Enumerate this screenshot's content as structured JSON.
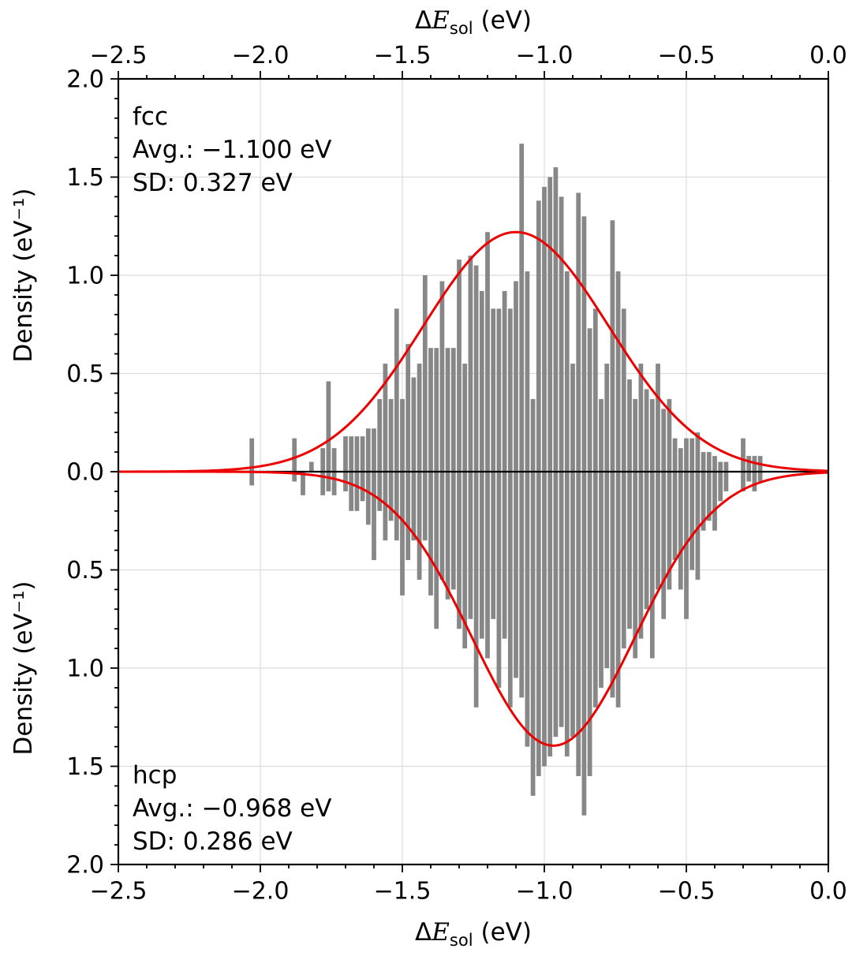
{
  "chart_data": {
    "type": "bar",
    "subtype": "mirrored_histogram_with_density_curves",
    "xlabel": {
      "delta": "Δ",
      "symbol": "E",
      "sub": "sol",
      "units": " (eV)"
    },
    "ylabel": "Density (eV⁻¹)",
    "xlim": [
      -2.5,
      0.0
    ],
    "ylim_half": 2.0,
    "bin_width": 0.02,
    "x_ticks": {
      "values": [
        -2.5,
        -2.0,
        -1.5,
        -1.0,
        -0.5,
        0.0
      ],
      "labels": [
        "−2.5",
        "−2.0",
        "−1.5",
        "−1.0",
        "−0.5",
        "0.0"
      ]
    },
    "y_ticks_top": {
      "values": [
        2.0,
        1.5,
        1.0,
        0.5,
        0.0
      ],
      "labels": [
        "2.0",
        "1.5",
        "1.0",
        "0.5",
        "0.0"
      ]
    },
    "y_ticks_bottom": {
      "values": [
        0.5,
        1.0,
        1.5,
        2.0
      ],
      "labels": [
        "0.5",
        "1.0",
        "1.5",
        "2.0"
      ]
    },
    "colors": {
      "bar": "#878787",
      "curve": "#ed0000",
      "grid": "#dcdcdc",
      "axis": "#000000",
      "zero_line": "#000000"
    },
    "annotations": {
      "fcc": {
        "lines": [
          "fcc",
          "Avg.: −1.100 eV",
          "SD: 0.327 eV"
        ]
      },
      "hcp": {
        "lines": [
          "hcp",
          "Avg.: −0.968 eV",
          "SD: 0.286 eV"
        ]
      }
    },
    "series": [
      {
        "name": "fcc",
        "side": "up",
        "avg": -1.1,
        "sd": 0.327,
        "bars": [
          [
            -2.03,
            0.17
          ],
          [
            -1.88,
            0.17
          ],
          [
            -1.82,
            0.05
          ],
          [
            -1.78,
            0.12
          ],
          [
            -1.76,
            0.46
          ],
          [
            -1.74,
            0.12
          ],
          [
            -1.7,
            0.18
          ],
          [
            -1.68,
            0.18
          ],
          [
            -1.66,
            0.18
          ],
          [
            -1.64,
            0.18
          ],
          [
            -1.62,
            0.22
          ],
          [
            -1.6,
            0.22
          ],
          [
            -1.58,
            0.37
          ],
          [
            -1.56,
            0.55
          ],
          [
            -1.54,
            0.37
          ],
          [
            -1.52,
            0.83
          ],
          [
            -1.5,
            0.37
          ],
          [
            -1.48,
            0.65
          ],
          [
            -1.46,
            0.48
          ],
          [
            -1.44,
            0.55
          ],
          [
            -1.42,
            1.0
          ],
          [
            -1.4,
            0.63
          ],
          [
            -1.38,
            0.63
          ],
          [
            -1.36,
            0.97
          ],
          [
            -1.34,
            0.63
          ],
          [
            -1.32,
            0.63
          ],
          [
            -1.3,
            1.08
          ],
          [
            -1.28,
            0.55
          ],
          [
            -1.26,
            1.1
          ],
          [
            -1.24,
            1.05
          ],
          [
            -1.22,
            0.92
          ],
          [
            -1.2,
            1.22
          ],
          [
            -1.18,
            0.83
          ],
          [
            -1.16,
            0.83
          ],
          [
            -1.14,
            0.92
          ],
          [
            -1.12,
            0.83
          ],
          [
            -1.1,
            0.97
          ],
          [
            -1.08,
            1.67
          ],
          [
            -1.06,
            1.02
          ],
          [
            -1.04,
            0.37
          ],
          [
            -1.02,
            1.38
          ],
          [
            -1.0,
            1.45
          ],
          [
            -0.98,
            1.5
          ],
          [
            -0.96,
            1.55
          ],
          [
            -0.94,
            1.4
          ],
          [
            -0.92,
            1.02
          ],
          [
            -0.9,
            0.55
          ],
          [
            -0.88,
            1.42
          ],
          [
            -0.86,
            1.3
          ],
          [
            -0.84,
            0.73
          ],
          [
            -0.82,
            0.83
          ],
          [
            -0.8,
            0.37
          ],
          [
            -0.78,
            0.55
          ],
          [
            -0.76,
            1.28
          ],
          [
            -0.74,
            1.02
          ],
          [
            -0.72,
            0.83
          ],
          [
            -0.7,
            0.47
          ],
          [
            -0.68,
            0.37
          ],
          [
            -0.66,
            0.55
          ],
          [
            -0.64,
            0.42
          ],
          [
            -0.62,
            0.37
          ],
          [
            -0.6,
            0.55
          ],
          [
            -0.58,
            0.32
          ],
          [
            -0.56,
            0.37
          ],
          [
            -0.54,
            0.17
          ],
          [
            -0.52,
            0.12
          ],
          [
            -0.5,
            0.17
          ],
          [
            -0.48,
            0.17
          ],
          [
            -0.46,
            0.2
          ],
          [
            -0.44,
            0.1
          ],
          [
            -0.42,
            0.1
          ],
          [
            -0.4,
            0.08
          ],
          [
            -0.38,
            0.05
          ],
          [
            -0.36,
            0.05
          ],
          [
            -0.3,
            0.17
          ],
          [
            -0.28,
            0.08
          ],
          [
            -0.26,
            0.08
          ],
          [
            -0.24,
            0.08
          ]
        ]
      },
      {
        "name": "hcp",
        "side": "down",
        "avg": -0.968,
        "sd": 0.286,
        "bars": [
          [
            -2.03,
            0.07
          ],
          [
            -1.88,
            0.05
          ],
          [
            -1.85,
            0.12
          ],
          [
            -1.78,
            0.12
          ],
          [
            -1.76,
            0.1
          ],
          [
            -1.74,
            0.12
          ],
          [
            -1.7,
            0.1
          ],
          [
            -1.68,
            0.2
          ],
          [
            -1.66,
            0.2
          ],
          [
            -1.64,
            0.15
          ],
          [
            -1.62,
            0.27
          ],
          [
            -1.6,
            0.45
          ],
          [
            -1.58,
            0.2
          ],
          [
            -1.56,
            0.35
          ],
          [
            -1.54,
            0.25
          ],
          [
            -1.52,
            0.35
          ],
          [
            -1.5,
            0.63
          ],
          [
            -1.48,
            0.45
          ],
          [
            -1.46,
            0.35
          ],
          [
            -1.44,
            0.55
          ],
          [
            -1.42,
            0.35
          ],
          [
            -1.4,
            0.63
          ],
          [
            -1.38,
            0.8
          ],
          [
            -1.36,
            0.55
          ],
          [
            -1.34,
            0.65
          ],
          [
            -1.32,
            0.6
          ],
          [
            -1.3,
            0.8
          ],
          [
            -1.28,
            0.9
          ],
          [
            -1.26,
            0.75
          ],
          [
            -1.24,
            1.2
          ],
          [
            -1.22,
            0.85
          ],
          [
            -1.2,
            0.95
          ],
          [
            -1.18,
            0.75
          ],
          [
            -1.16,
            1.1
          ],
          [
            -1.14,
            0.85
          ],
          [
            -1.12,
            1.2
          ],
          [
            -1.1,
            1.05
          ],
          [
            -1.08,
            1.15
          ],
          [
            -1.06,
            1.4
          ],
          [
            -1.04,
            1.65
          ],
          [
            -1.02,
            1.55
          ],
          [
            -1.0,
            1.5
          ],
          [
            -0.98,
            1.45
          ],
          [
            -0.96,
            1.35
          ],
          [
            -0.94,
            1.3
          ],
          [
            -0.92,
            1.45
          ],
          [
            -0.9,
            1.35
          ],
          [
            -0.88,
            1.55
          ],
          [
            -0.86,
            1.75
          ],
          [
            -0.84,
            1.55
          ],
          [
            -0.82,
            1.2
          ],
          [
            -0.8,
            1.1
          ],
          [
            -0.78,
            1.0
          ],
          [
            -0.76,
            1.15
          ],
          [
            -0.74,
            1.2
          ],
          [
            -0.72,
            0.9
          ],
          [
            -0.7,
            0.8
          ],
          [
            -0.68,
            0.95
          ],
          [
            -0.66,
            0.85
          ],
          [
            -0.64,
            0.7
          ],
          [
            -0.62,
            0.95
          ],
          [
            -0.6,
            0.6
          ],
          [
            -0.58,
            0.75
          ],
          [
            -0.56,
            0.6
          ],
          [
            -0.54,
            0.45
          ],
          [
            -0.52,
            0.6
          ],
          [
            -0.5,
            0.75
          ],
          [
            -0.48,
            0.5
          ],
          [
            -0.46,
            0.55
          ],
          [
            -0.44,
            0.3
          ],
          [
            -0.42,
            0.25
          ],
          [
            -0.4,
            0.3
          ],
          [
            -0.38,
            0.15
          ],
          [
            -0.36,
            0.1
          ],
          [
            -0.3,
            0.1
          ],
          [
            -0.28,
            0.05
          ],
          [
            -0.26,
            0.1
          ],
          [
            -0.24,
            0.05
          ]
        ]
      }
    ]
  }
}
